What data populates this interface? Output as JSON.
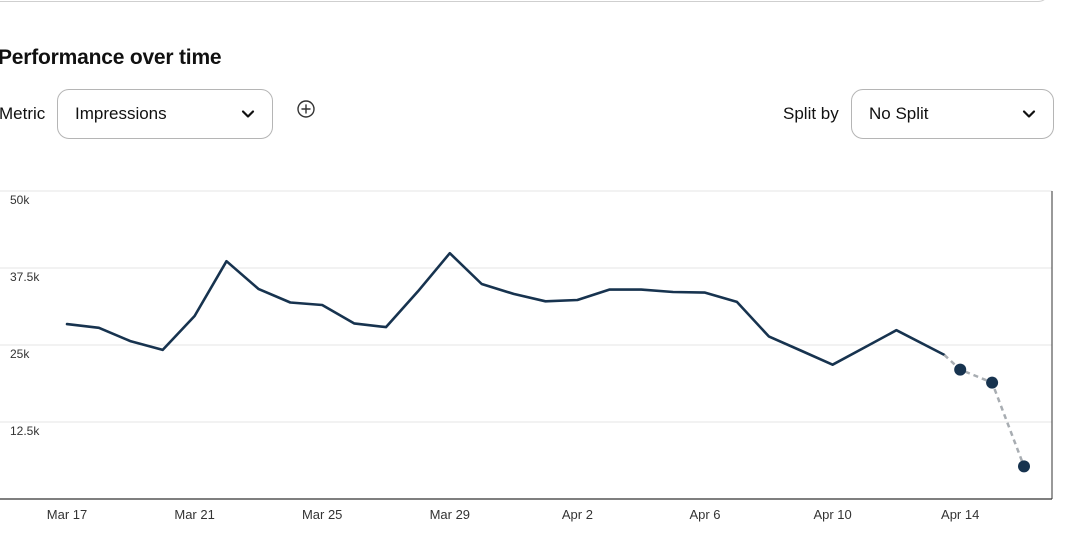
{
  "section": {
    "title": "Performance over time"
  },
  "controls": {
    "metric_label": "Metric",
    "metric_value": "Impressions",
    "split_label": "Split by",
    "split_value": "No Split"
  },
  "icons": {
    "dropdown": "chevron-down-icon",
    "add_metric": "plus-circle-icon"
  },
  "colors": {
    "line": "#17334f",
    "projection": "#a8adb2",
    "grid": "#e6e6e6",
    "axis": "#333333"
  },
  "chart_data": {
    "type": "line",
    "title": "",
    "xlabel": "",
    "ylabel": "",
    "ylim": [
      0,
      50000
    ],
    "yticks": [
      12500,
      25000,
      37500,
      50000
    ],
    "ytick_labels": [
      "12.5k",
      "25k",
      "37.5k",
      "50k"
    ],
    "x_tick_labels": [
      "Mar 17",
      "Mar 21",
      "Mar 25",
      "Mar 29",
      "Apr 2",
      "Apr 6",
      "Apr 10",
      "Apr 14"
    ],
    "x_tick_days": [
      0,
      4,
      8,
      12,
      16,
      20,
      24,
      28
    ],
    "grid": true,
    "series": [
      {
        "style": "solid",
        "days": [
          0,
          1,
          2,
          3,
          4,
          5,
          6,
          7,
          8,
          9,
          10,
          11,
          12,
          13,
          14,
          15,
          16,
          17,
          18,
          19,
          20,
          21,
          22,
          23,
          24,
          25,
          26,
          27.5
        ],
        "values": [
          28400,
          27800,
          25600,
          24200,
          29700,
          38600,
          34100,
          31900,
          31500,
          28500,
          27900,
          33700,
          39900,
          34900,
          33300,
          32100,
          32300,
          34000,
          34000,
          33600,
          33500,
          32000,
          26400,
          24100,
          21800,
          24600,
          27400,
          23400
        ]
      },
      {
        "style": "dashed",
        "days": [
          27.5,
          28,
          29,
          30
        ],
        "values": [
          23400,
          21000,
          18900,
          5300
        ],
        "markers": [
          28,
          29,
          30
        ]
      }
    ]
  }
}
